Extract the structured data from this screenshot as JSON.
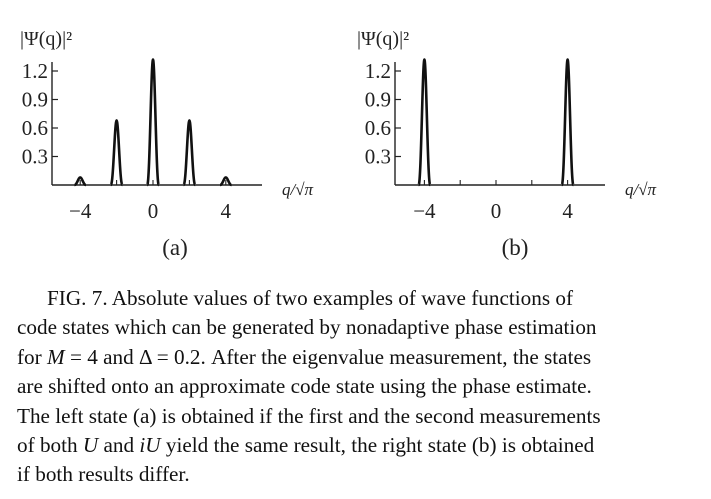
{
  "chart_data": [
    {
      "type": "line",
      "panel_label": "(a)",
      "ylabel": "|Ψ(q)|²",
      "xlabel": "q/√π",
      "yticks": [
        "1.2",
        "0.9",
        "0.6",
        "0.3"
      ],
      "ytick_values": [
        1.2,
        0.9,
        0.6,
        0.3
      ],
      "xticks": [
        "−4",
        "0",
        "4"
      ],
      "xtick_values": [
        -4,
        0,
        4
      ],
      "xlim": [
        -5.4,
        6.0
      ],
      "ylim": [
        0,
        1.3
      ],
      "series": [
        {
          "peaks": [
            {
              "x": -4,
              "y": 0.08
            },
            {
              "x": -2,
              "y": 0.68
            },
            {
              "x": 0,
              "y": 1.32
            },
            {
              "x": 2,
              "y": 0.68
            },
            {
              "x": 4,
              "y": 0.08
            }
          ]
        }
      ]
    },
    {
      "type": "line",
      "panel_label": "(b)",
      "ylabel": "|Ψ(q)|²",
      "xlabel": "q/√π",
      "yticks": [
        "1.2",
        "0.9",
        "0.6",
        "0.3"
      ],
      "ytick_values": [
        1.2,
        0.9,
        0.6,
        0.3
      ],
      "xticks": [
        "−4",
        "0",
        "4"
      ],
      "xtick_values": [
        -4,
        0,
        4
      ],
      "xlim": [
        -5.4,
        6.0
      ],
      "ylim": [
        0,
        1.3
      ],
      "series": [
        {
          "peaks": [
            {
              "x": -4,
              "y": 1.32
            },
            {
              "x": 4,
              "y": 1.32
            }
          ]
        }
      ]
    }
  ],
  "caption": {
    "line1": "FIG. 7.  Absolute values of two examples of wave functions of",
    "line2": "code states which can be generated by nonadaptive phase estimation",
    "line3_a": "for ",
    "M": "M",
    "line3_b": " = 4 and Δ = 0.2. After the eigenvalue measurement, the states",
    "line4": "are shifted onto an approximate code state using the phase estimate.",
    "line5": "The left state (a) is obtained if the first and the second measurements",
    "line6_a": "of both ",
    "U": "U",
    "line6_b": " and ",
    "iU": "iU",
    "line6_c": " yield the same result, the right state (b) is obtained",
    "line7": "if both results differ."
  }
}
